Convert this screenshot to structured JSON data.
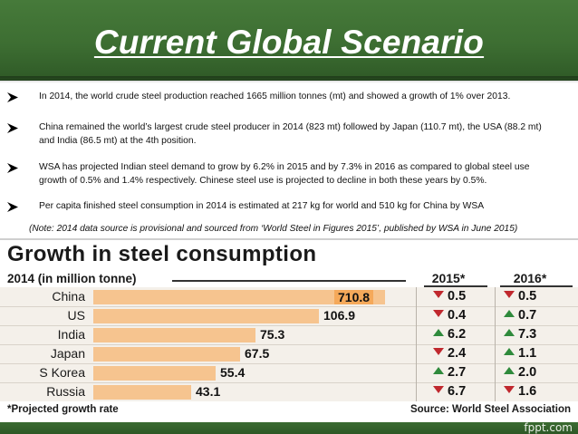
{
  "slide": {
    "title": "Current Global Scenario",
    "bullets": [
      {
        "text": "In 2014, the world crude steel production reached 1665 million tonnes (mt) and showed a growth of 1% over 2013."
      },
      {
        "text": "China remained the world’s largest crude steel producer in 2014 (823 mt) followed by Japan (110.7 mt), the USA (88.2 mt) and India (86.5 mt) at the 4th position."
      },
      {
        "text": "WSA has projected Indian steel demand to grow by 6.2% in 2015 and by 7.3% in 2016 as compared to global steel use growth of 0.5% and 1.4% respectively. Chinese steel use is projected to decline in both these years by 0.5%."
      },
      {
        "text": "Per capita finished steel consumption in 2014 is estimated at 217 kg for world and 510 kg for China by WSA"
      }
    ],
    "note": "(Note: 2014 data source is provisional and sourced from ‘World Steel in Figures 2015’, published by WSA in June 2015)"
  },
  "steel_table": {
    "title": "Growth in steel consumption",
    "subtitle": "2014 (in million tonne)",
    "col_2015": "2015*",
    "col_2016": "2016*",
    "rows": [
      {
        "country": "China",
        "value": 710.8,
        "value_label": "710.8",
        "g2015": "0.5",
        "d2015": "down",
        "g2016": "0.5",
        "d2016": "down"
      },
      {
        "country": "US",
        "value": 106.9,
        "value_label": "106.9",
        "g2015": "0.4",
        "d2015": "down",
        "g2016": "0.7",
        "d2016": "up"
      },
      {
        "country": "India",
        "value": 75.3,
        "value_label": "75.3",
        "g2015": "6.2",
        "d2015": "up",
        "g2016": "7.3",
        "d2016": "up"
      },
      {
        "country": "Japan",
        "value": 67.5,
        "value_label": "67.5",
        "g2015": "2.4",
        "d2015": "down",
        "g2016": "1.1",
        "d2016": "up"
      },
      {
        "country": "S Korea",
        "value": 55.4,
        "value_label": "55.4",
        "g2015": "2.7",
        "d2015": "up",
        "g2016": "2.0",
        "d2016": "up"
      },
      {
        "country": "Russia",
        "value": 43.1,
        "value_label": "43.1",
        "g2015": "6.7",
        "d2015": "down",
        "g2016": "1.6",
        "d2016": "down"
      }
    ],
    "footnote": "*Projected growth rate",
    "source": "Source: World Steel Association"
  },
  "colors": {
    "header_green": "#3d6e32",
    "bar_fill": "#f6c48f",
    "bar_highlight": "#f5a95a",
    "down_red": "#c0282e",
    "up_green": "#2f8a3c"
  },
  "branding": {
    "watermark": "fppt.com"
  }
}
